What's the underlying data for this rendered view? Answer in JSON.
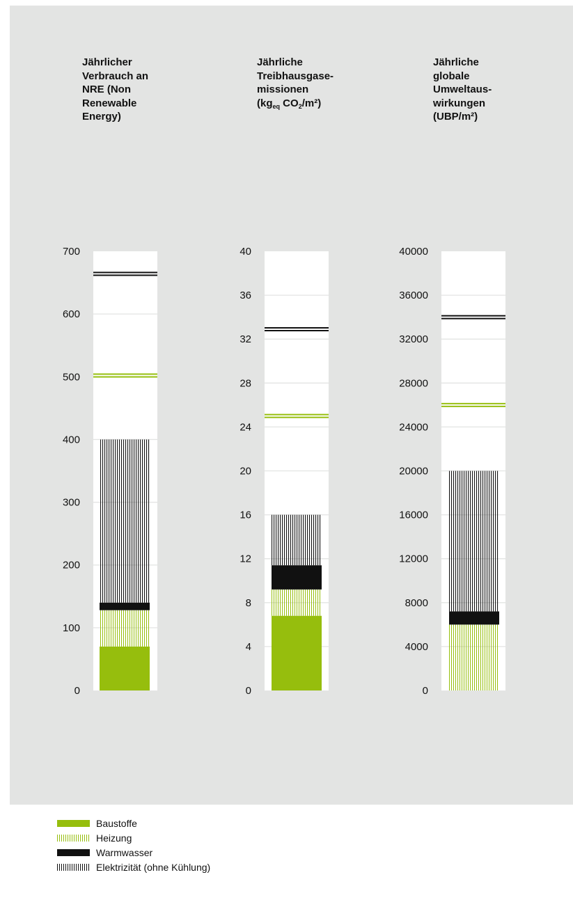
{
  "colors": {
    "panel_bg": "#e3e4e3",
    "green": "#96be0d",
    "black": "#111111",
    "column_bg": "#ffffff"
  },
  "chart_data": [
    {
      "type": "bar",
      "stacked": true,
      "title_lines": [
        "Jährlicher",
        "Verbrauch an",
        "NRE (Non",
        "Renewable",
        "Energy)"
      ],
      "ylim": [
        0,
        700
      ],
      "yticks": [
        0,
        100,
        200,
        300,
        400,
        500,
        600,
        700
      ],
      "stack": [
        {
          "series": "Baustoffe",
          "value": 70
        },
        {
          "series": "Heizung",
          "value": 58
        },
        {
          "series": "Warmwasser",
          "value": 12
        },
        {
          "series": "Elektrizität (ohne Kühlung)",
          "value": 260
        }
      ],
      "reference_lines": [
        {
          "color": "green",
          "value": 502
        },
        {
          "color": "black",
          "value": 664
        }
      ]
    },
    {
      "type": "bar",
      "stacked": true,
      "title_lines": [
        "Jährliche",
        "Treibhausgase-",
        "missionen"
      ],
      "title_unit": {
        "pre": "(kg",
        "sub1": "eq",
        "mid": " CO",
        "sub2": "2",
        "post": "/m²)"
      },
      "ylim": [
        0,
        40
      ],
      "yticks": [
        0,
        4,
        8,
        12,
        16,
        20,
        24,
        28,
        32,
        36,
        40
      ],
      "stack": [
        {
          "series": "Baustoffe",
          "value": 6.8
        },
        {
          "series": "Heizung",
          "value": 2.4
        },
        {
          "series": "Warmwasser",
          "value": 2.2
        },
        {
          "series": "Elektrizität (ohne Kühlung)",
          "value": 4.6
        }
      ],
      "reference_lines": [
        {
          "color": "green",
          "value": 25
        },
        {
          "color": "black",
          "value": 32.9
        }
      ]
    },
    {
      "type": "bar",
      "stacked": true,
      "title_lines": [
        "Jährliche",
        "globale",
        "Umweltaus-",
        "wirkungen",
        "(UBP/m²)"
      ],
      "ylim": [
        0,
        40000
      ],
      "yticks": [
        0,
        4000,
        8000,
        12000,
        16000,
        20000,
        24000,
        28000,
        32000,
        36000,
        40000
      ],
      "stack": [
        {
          "series": "Heizung",
          "value": 6000
        },
        {
          "series": "Warmwasser",
          "value": 1200
        },
        {
          "series": "Elektrizität (ohne Kühlung)",
          "value": 12800
        }
      ],
      "reference_lines": [
        {
          "color": "green",
          "value": 26000
        },
        {
          "color": "black",
          "value": 34000
        }
      ]
    }
  ],
  "legend": [
    {
      "key": "bau",
      "pattern": "solid-green",
      "label": "Baustoffe"
    },
    {
      "key": "hz",
      "pattern": "hatched-green",
      "label": "Heizung"
    },
    {
      "key": "ww",
      "pattern": "solid-black",
      "label": "Warmwasser"
    },
    {
      "key": "el",
      "pattern": "hatched-black",
      "label": "Elektrizität (ohne Kühlung)"
    }
  ]
}
